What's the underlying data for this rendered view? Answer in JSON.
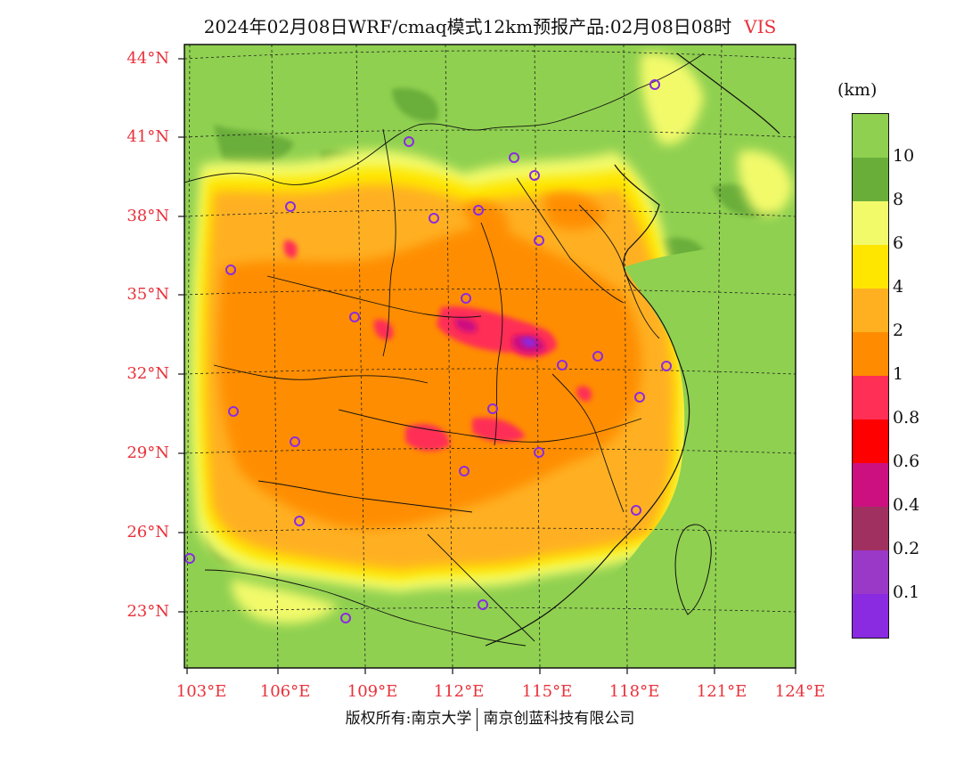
{
  "title": {
    "main": "2024年02月08日WRF/cmaq模式12km预报产品:02月08日08时",
    "variable": "VIS"
  },
  "lat_labels": [
    "44°N",
    "41°N",
    "38°N",
    "35°N",
    "32°N",
    "29°N",
    "26°N",
    "23°N"
  ],
  "lon_labels": [
    "103°E",
    "106°E",
    "109°E",
    "112°E",
    "115°E",
    "118°E",
    "121°E",
    "124°E"
  ],
  "legend": {
    "unit": "(km)",
    "colors": [
      "#8fd050",
      "#6aae3a",
      "#f2fa6a",
      "#ffe600",
      "#ffb020",
      "#ff8c00",
      "#ff2f56",
      "#ff0000",
      "#cc1080",
      "#a03060",
      "#9a38c8",
      "#8a2be2"
    ],
    "labels": [
      "10",
      "8",
      "6",
      "4",
      "2",
      "1",
      "0.8",
      "0.6",
      "0.4",
      "0.2",
      "0.1"
    ]
  },
  "copyright": {
    "left": "版权所有:南京大学",
    "right": "南京创蓝科技有限公司"
  }
}
